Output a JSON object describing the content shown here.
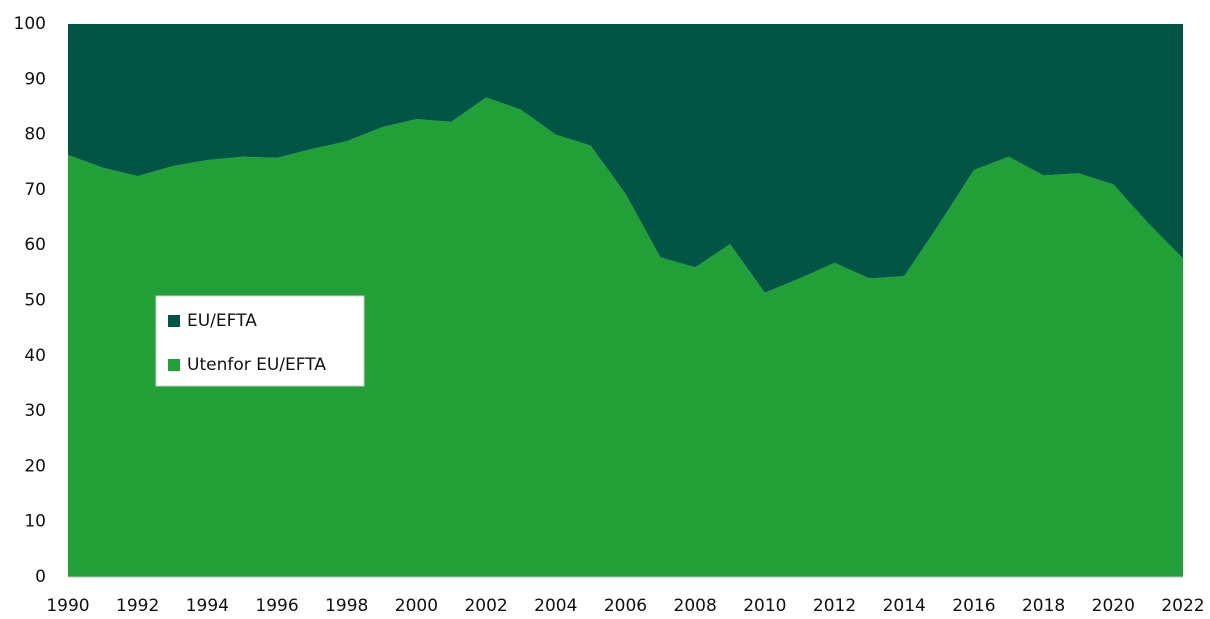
{
  "chart_data": {
    "type": "stacked_area",
    "x": [
      1990,
      1991,
      1992,
      1993,
      1994,
      1995,
      1996,
      1997,
      1998,
      1999,
      2000,
      2001,
      2002,
      2003,
      2004,
      2005,
      2006,
      2007,
      2008,
      2009,
      2010,
      2011,
      2012,
      2013,
      2014,
      2015,
      2016,
      2017,
      2018,
      2019,
      2020,
      2021,
      2022
    ],
    "series": [
      {
        "name": "Utenfor EU/EFTA",
        "color": "#22a038",
        "values": [
          76.3,
          74,
          72.5,
          74.3,
          75.4,
          76,
          75.8,
          77.4,
          78.8,
          81.3,
          82.8,
          82.3,
          86.7,
          84.5,
          80,
          78,
          69.3,
          57.8,
          56,
          60.2,
          51.4,
          54,
          56.8,
          54,
          54.4,
          63.8,
          73.6,
          76,
          72.6,
          73,
          71,
          64,
          57.6
        ]
      },
      {
        "name": "EU/EFTA",
        "color": "#005545",
        "values": [
          23.7,
          26,
          27.5,
          25.7,
          24.6,
          24,
          24.2,
          22.6,
          21.2,
          18.7,
          17.2,
          17.7,
          13.3,
          15.5,
          20,
          22,
          30.7,
          42.2,
          44,
          39.8,
          48.6,
          46,
          43.2,
          46,
          45.6,
          36.2,
          26.4,
          24,
          27.4,
          27,
          29,
          36,
          42.4
        ]
      }
    ],
    "xlim": [
      1990,
      2022
    ],
    "xticks": [
      1990,
      1992,
      1994,
      1996,
      1998,
      2000,
      2002,
      2004,
      2006,
      2008,
      2010,
      2012,
      2014,
      2016,
      2018,
      2020,
      2022
    ],
    "ylim": [
      0,
      100
    ],
    "yticks": [
      0,
      10,
      20,
      30,
      40,
      50,
      60,
      70,
      80,
      90,
      100
    ],
    "legend": "left"
  }
}
